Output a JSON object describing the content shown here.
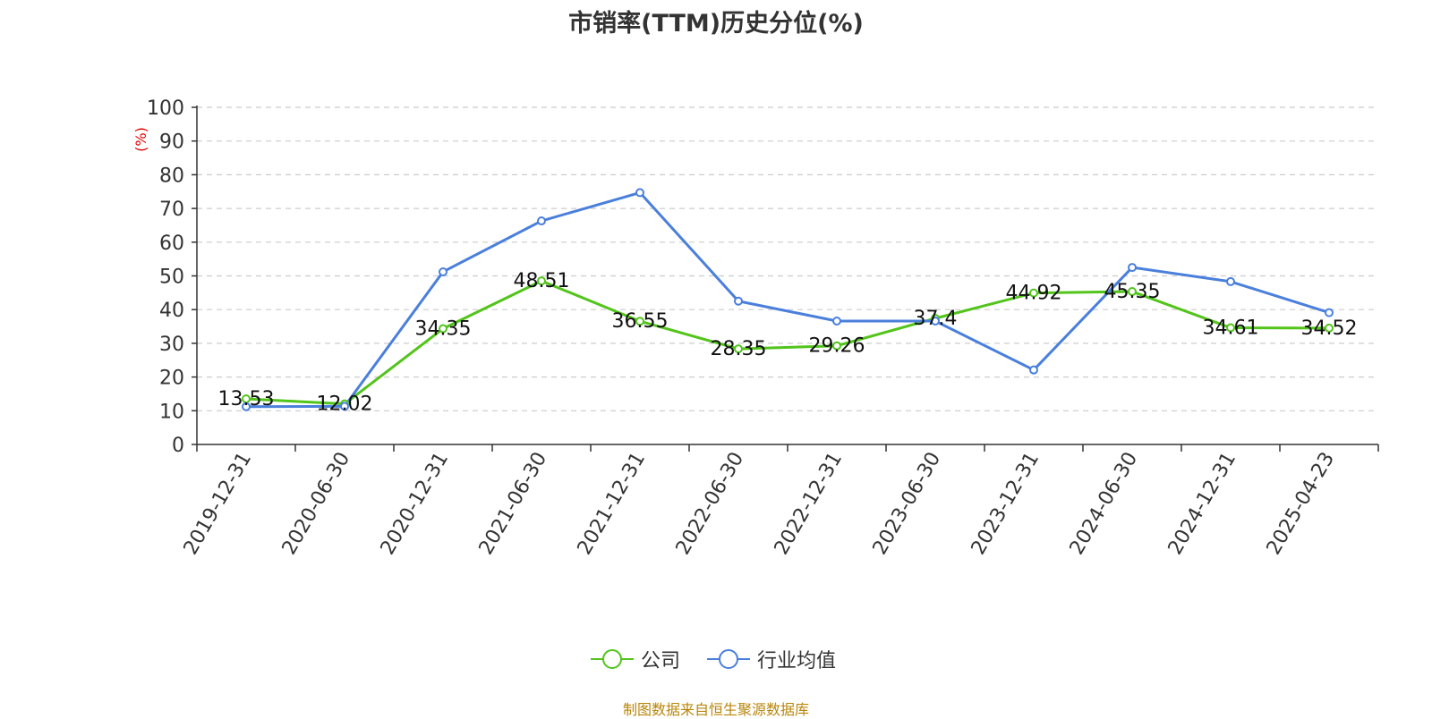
{
  "chart_data": {
    "type": "line",
    "title": "市销率(TTM)历史分位(%)",
    "ylabel": "(%)",
    "ylim": [
      0,
      100
    ],
    "yticks": [
      0,
      10,
      20,
      30,
      40,
      50,
      60,
      70,
      80,
      90,
      100
    ],
    "grid": true,
    "legend_position": "bottom",
    "categories": [
      "2019-12-31",
      "2020-06-30",
      "2020-12-31",
      "2021-06-30",
      "2021-12-31",
      "2022-06-30",
      "2022-12-31",
      "2023-06-30",
      "2023-12-31",
      "2024-06-30",
      "2024-12-31",
      "2025-04-23"
    ],
    "series": [
      {
        "name": "公司",
        "color": "#52c41a",
        "values": [
          13.53,
          12.02,
          34.35,
          48.51,
          36.55,
          28.35,
          29.26,
          37.4,
          44.92,
          45.35,
          34.61,
          34.52
        ],
        "labels": [
          "13.53",
          "12.02",
          "34.35",
          "48.51",
          "36.55",
          "28.35",
          "29.26",
          "37.4",
          "44.92",
          "45.35",
          "34.61",
          "34.52"
        ]
      },
      {
        "name": "行业均值",
        "color": "#4a7fdc",
        "values": [
          11.2,
          11.3,
          51.2,
          66.3,
          74.7,
          42.5,
          36.6,
          36.6,
          22.1,
          52.5,
          48.3,
          39.1
        ]
      }
    ]
  },
  "source_note": "制图数据来自恒生聚源数据库"
}
